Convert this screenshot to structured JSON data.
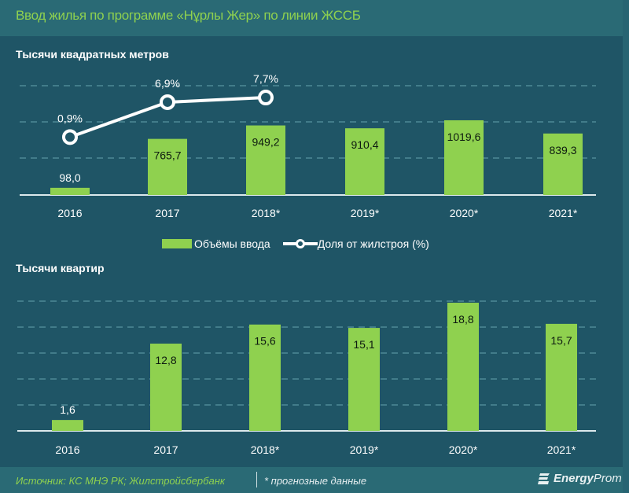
{
  "title": "Ввод жилья по программе  «Нұрлы  Жер» по линии ЖССБ",
  "colors": {
    "background": "#1f5566",
    "title_bar": "#2a6a75",
    "title_text": "#8fd14f",
    "bar": "#8fd14f",
    "line": "#ffffff",
    "grid": "#4f8a96"
  },
  "chart_data": [
    {
      "type": "bar",
      "title": "Тысячи квадратных метров",
      "categories": [
        "2016",
        "2017",
        "2018*",
        "2019*",
        "2020*",
        "2021*"
      ],
      "series": [
        {
          "name": "Объёмы ввода",
          "type": "bar",
          "values": [
            98.0,
            765.7,
            949.2,
            910.4,
            1019.6,
            839.3
          ],
          "labels": [
            "98,0",
            "765,7",
            "949,2",
            "910,4",
            "1019,6",
            "839,3"
          ]
        },
        {
          "name": "Доля от жилстроя (%)",
          "type": "line",
          "values": [
            0.9,
            6.9,
            7.7,
            null,
            null,
            null
          ],
          "labels": [
            "0,9%",
            "6,9%",
            "7,7%",
            "",
            "",
            ""
          ]
        }
      ],
      "legend": [
        "Объёмы ввода",
        "Доля от жилстроя (%)"
      ],
      "legend_position": "bottom-center",
      "grid": true,
      "xlabel": "",
      "ylabel": ""
    },
    {
      "type": "bar",
      "title": "Тысячи квартир",
      "categories": [
        "2016",
        "2017",
        "2018*",
        "2019*",
        "2020*",
        "2021*"
      ],
      "series": [
        {
          "name": "Тысячи квартир",
          "values": [
            1.6,
            12.8,
            15.6,
            15.1,
            18.8,
            15.7
          ],
          "labels": [
            "1,6",
            "12,8",
            "15,6",
            "15,1",
            "18,8",
            "15,7"
          ]
        }
      ],
      "grid": true,
      "xlabel": "",
      "ylabel": ""
    }
  ],
  "footer": {
    "source": "Источник: КС МНЭ РК; Жилстройсбербанк",
    "note": "* прогнозные данные",
    "logo_bold": "Energy",
    "logo_rest": "Prom"
  }
}
